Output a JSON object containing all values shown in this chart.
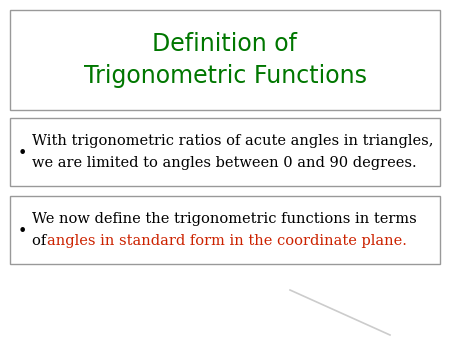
{
  "title_line1": "Definition of",
  "title_line2": "Trigonometric Functions",
  "title_color": "#007700",
  "background_color": "#ffffff",
  "bullet1_line1": "With trigonometric ratios of acute angles in triangles,",
  "bullet1_line2": "we are limited to angles between 0 and 90 degrees.",
  "bullet2_line1": "We now define the trigonometric functions in terms",
  "bullet2_line2_black": "of ",
  "bullet2_line2_red": "angles in standard form in the coordinate plane.",
  "bullet_color": "#000000",
  "red_color": "#cc2200",
  "box_edge_color": "#999999",
  "title_fontsize": 17,
  "body_fontsize": 10.5,
  "bullet_symbol": "•",
  "watermark_line": [
    [
      0.62,
      0.85
    ],
    [
      0.18,
      0.05
    ]
  ]
}
